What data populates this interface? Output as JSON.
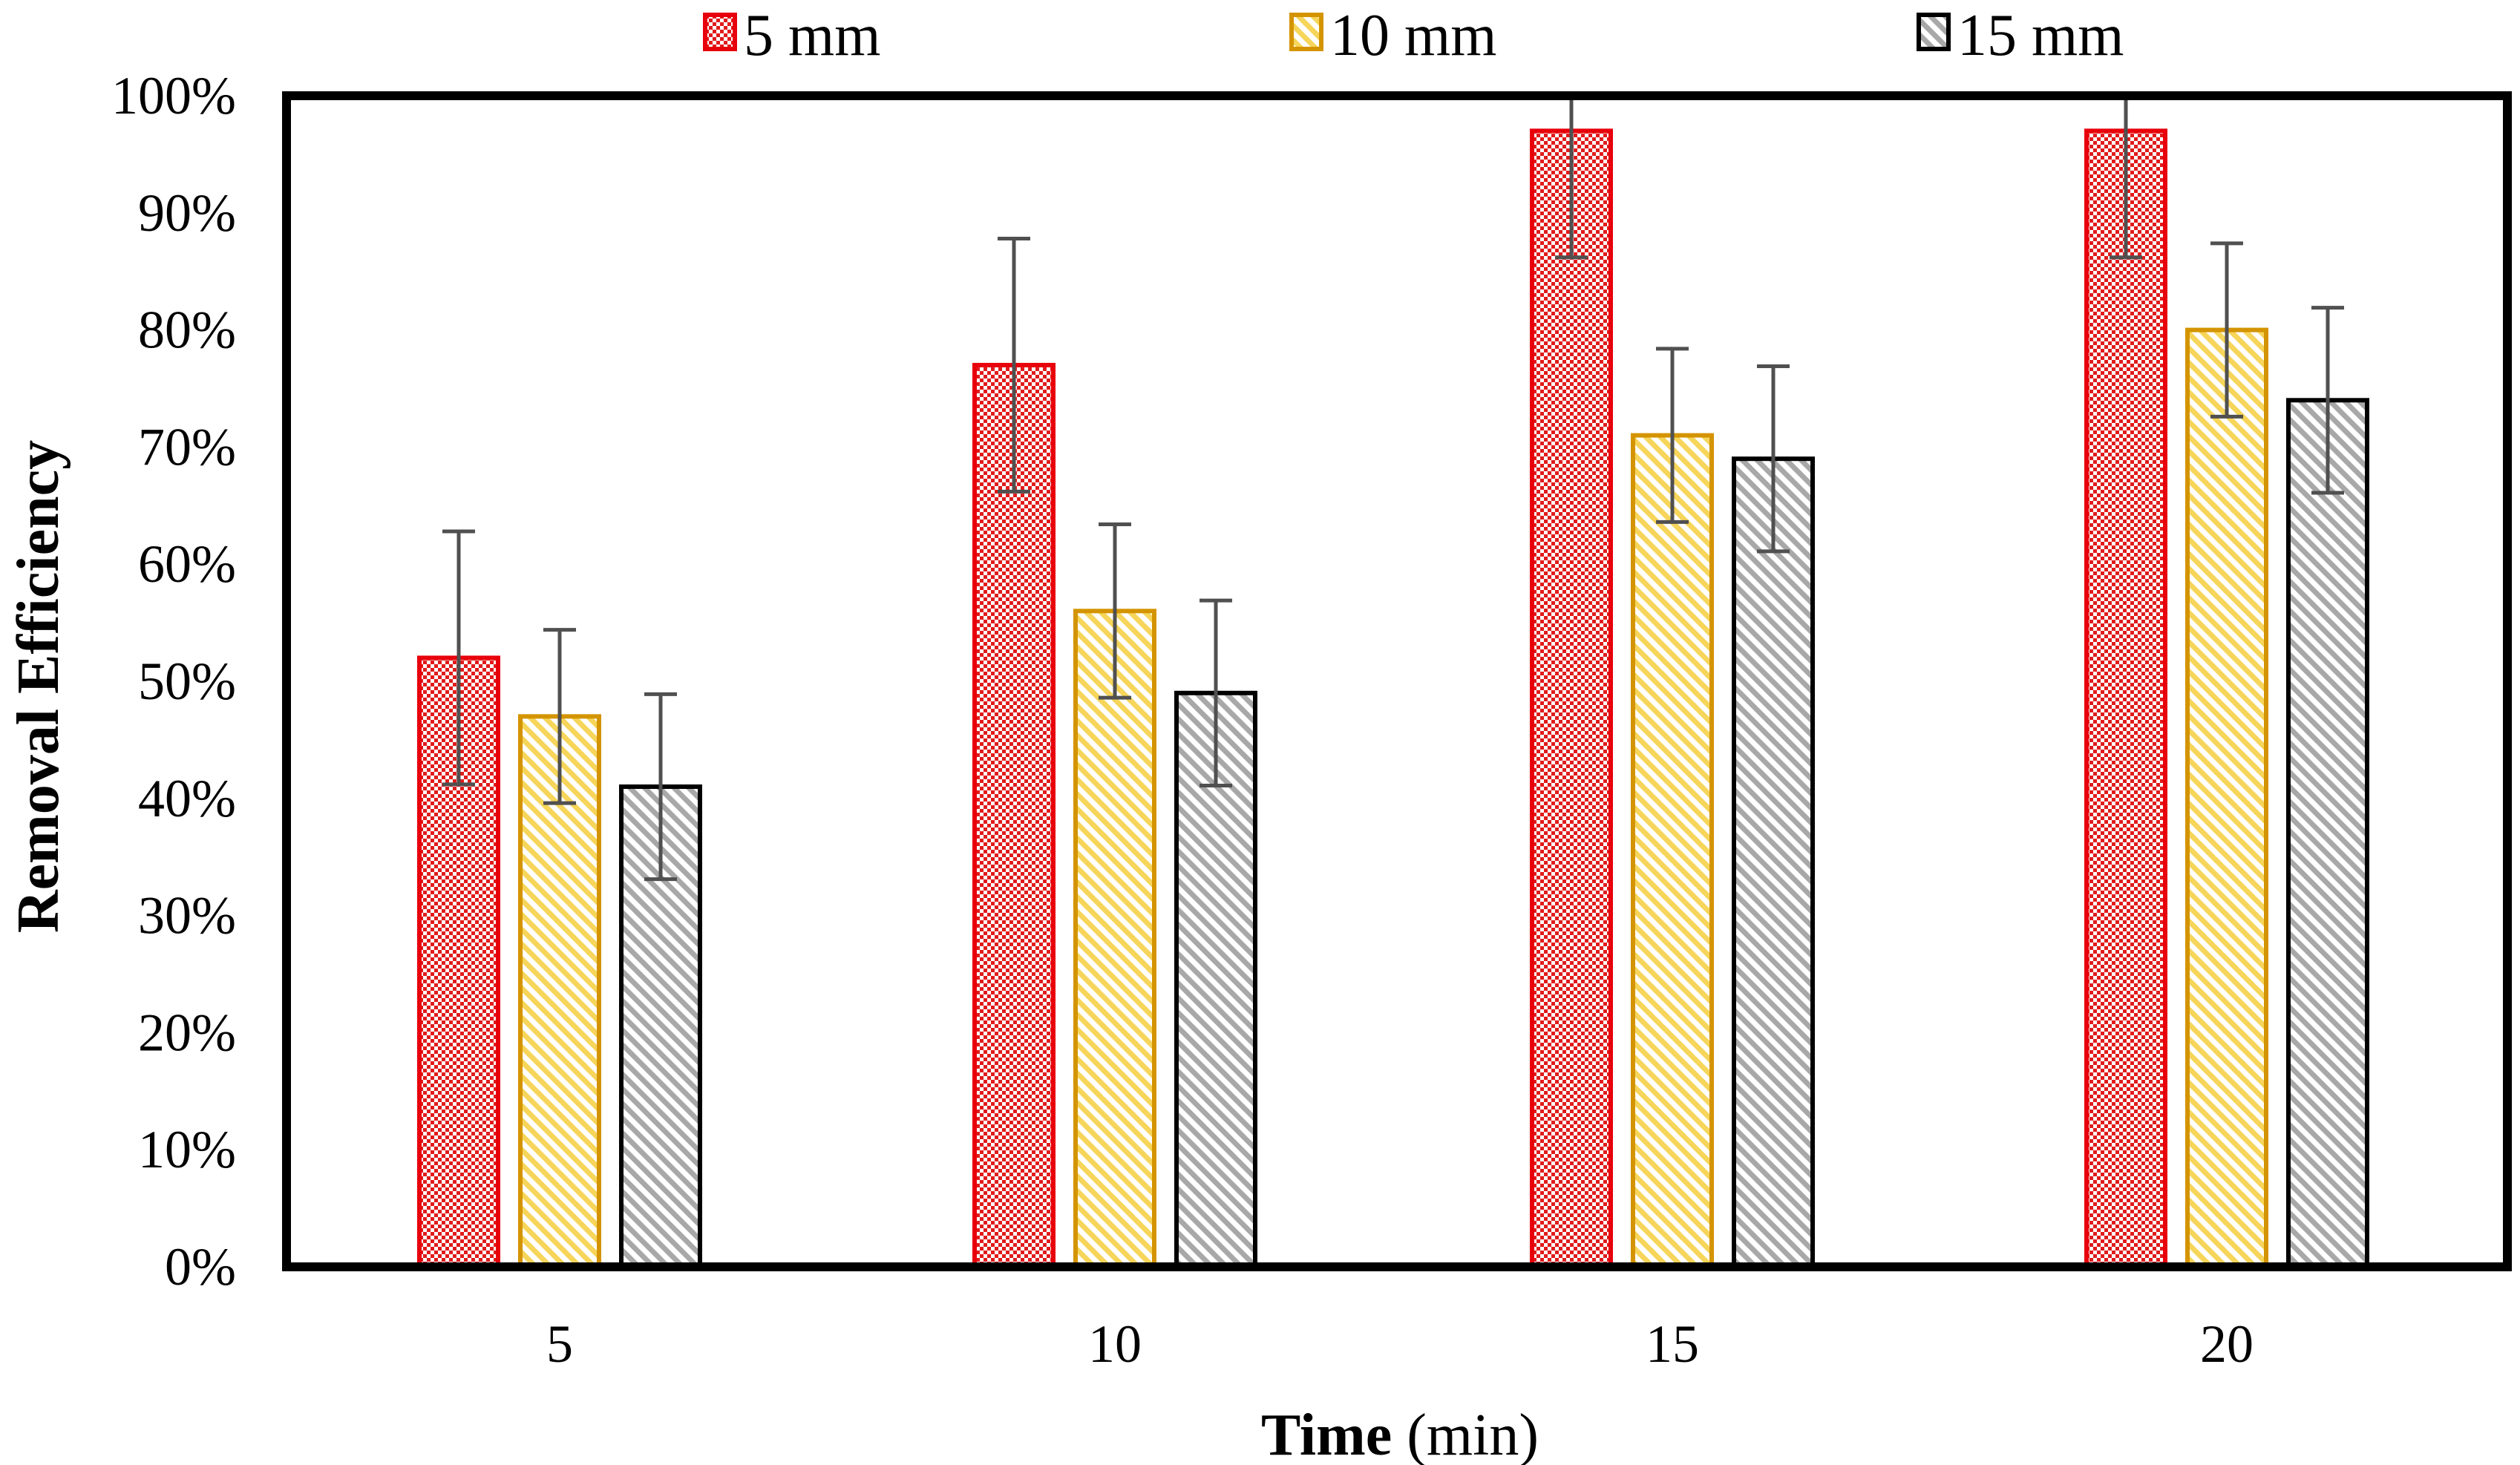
{
  "chart_data": {
    "type": "bar",
    "title": "",
    "xlabel": "Time",
    "xlabel_unit": "(min)",
    "ylabel": "Removal Efficiency",
    "ylim": [
      0,
      100
    ],
    "yticks": [
      0,
      10,
      20,
      30,
      40,
      50,
      60,
      70,
      80,
      90,
      100
    ],
    "ytick_labels": [
      "0%",
      "10%",
      "20%",
      "30%",
      "40%",
      "50%",
      "60%",
      "70%",
      "80%",
      "90%",
      "100%"
    ],
    "categories": [
      "5",
      "10",
      "15",
      "20"
    ],
    "grid": false,
    "legend_position": "top",
    "series": [
      {
        "name": "5 mm",
        "values": [
          52,
          77,
          97,
          97
        ],
        "errors": [
          10.8,
          10.8,
          10.8,
          10.8
        ],
        "color": "#e8000b",
        "pattern": "checker"
      },
      {
        "name": "10 mm",
        "values": [
          47,
          56,
          71,
          80
        ],
        "errors": [
          7.4,
          7.4,
          7.4,
          7.4
        ],
        "color": "#d49400",
        "pattern": "diagonal-yellow"
      },
      {
        "name": "15 mm",
        "values": [
          41,
          49,
          69,
          74
        ],
        "errors": [
          7.9,
          7.9,
          7.9,
          7.9
        ],
        "color": "#000000",
        "pattern": "diagonal-gray"
      }
    ]
  }
}
